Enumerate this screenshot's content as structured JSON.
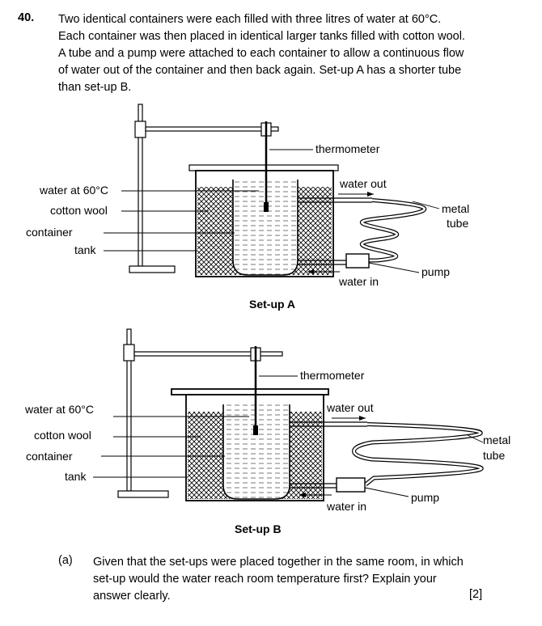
{
  "question": {
    "number": "40.",
    "lines": [
      "Two identical containers were each filled with three litres of water at 60°C.",
      "Each container was then placed in identical larger tanks filled with cotton wool.",
      "A tube and a pump were attached to each container to allow a continuous flow",
      "of water out of the container and then back again. Set-up A has a shorter tube",
      "than set-up B."
    ]
  },
  "setup_a": {
    "caption": "Set-up A",
    "labels": {
      "thermometer": "thermometer",
      "water_at": "water at 60°C",
      "cotton_wool": "cotton wool",
      "container": "container",
      "tank": "tank",
      "water_out": "water out",
      "metal": "metal",
      "tube": "tube",
      "pump": "pump",
      "water_in": "water in"
    }
  },
  "setup_b": {
    "caption": "Set-up B",
    "labels": {
      "thermometer": "thermometer",
      "water_at": "water at 60°C",
      "cotton_wool": "cotton wool",
      "container": "container",
      "tank": "tank",
      "water_out": "water out",
      "metal": "metal",
      "tube": "tube",
      "pump": "pump",
      "water_in": "water in"
    }
  },
  "part_a": {
    "label": "(a)",
    "lines": [
      "Given that the set-ups were placed together in the same room, in which",
      "set-up would the water reach room temperature first? Explain your",
      "answer clearly."
    ],
    "marks": "[2]"
  }
}
